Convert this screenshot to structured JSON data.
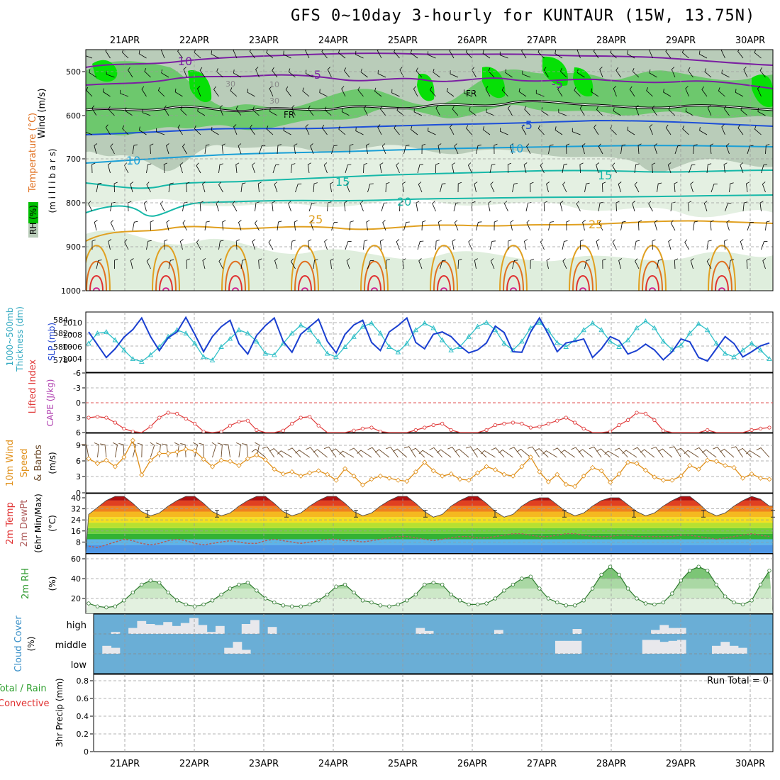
{
  "title": "GFS 0~10day 3-hourly for KUNTAUR (15W, 13.75N)",
  "colors": {
    "frame": "#000000",
    "grid": "#9a9a9a",
    "rh_light": "#dfeedd",
    "rh_mid": "#b9cdb9",
    "rh_green": "#67c767",
    "rh_bright": "#00e000",
    "purple": "#8b1fb0",
    "blue": "#1d4fd8",
    "cyan": "#1a9fd6",
    "teal": "#16b8a8",
    "orange": "#e0a020",
    "red": "#e03030",
    "magenta": "#d0208f",
    "slp": "#1a3fd0",
    "thickness": "#30c0c8",
    "lifted": "#e03a3a",
    "cape": "#b040b0",
    "wind10": "#e0901a",
    "barb": "#6b4a2a",
    "rh2m": "#2f9a2f",
    "cloud": "#6aaed6",
    "rain": "#2fa02f",
    "convective": "#e03030"
  },
  "dates": [
    "21APR",
    "22APR",
    "23APR",
    "24APR",
    "25APR",
    "26APR",
    "27APR",
    "28APR",
    "29APR",
    "30APR"
  ],
  "panels": {
    "upper": {
      "ylabel_wind": "Wind (m/s)",
      "ylabel_temp": "Temperature (°C)",
      "ylabel_rh": "RH (%)",
      "ylabel_mb": "(m i l l i b a r s)",
      "ticks": [
        "500",
        "600",
        "700",
        "800",
        "900",
        "1000"
      ],
      "contour_labels": [
        "-10",
        "-5",
        "-5",
        "FR",
        "FR",
        "-5",
        "10",
        "10",
        "15",
        "15",
        "20",
        "25",
        "25",
        "30",
        "30",
        "10",
        "30"
      ]
    },
    "slp": {
      "ylabel_thick": "1000~500mb",
      "ylabel_thick2": "Thickness (dm)",
      "ylabel_slp": "SLP (mb)",
      "left_ticks": [
        "584",
        "582",
        "580",
        "578"
      ],
      "right_ticks": [
        "1010",
        "1008",
        "1006",
        "1004"
      ]
    },
    "li": {
      "ylabel_li": "Lifted Index",
      "ylabel_cape": "CAPE (J/kg)",
      "ticks": [
        "-6",
        "-3",
        "0",
        "3",
        "6"
      ]
    },
    "wind10": {
      "ylabel1": "10m Wind",
      "ylabel2": "Speed",
      "ylabel3": "& Barbs",
      "ylabel_units": "(m/s)",
      "ticks": [
        "9",
        "6",
        "3",
        "0"
      ]
    },
    "temp2m": {
      "ylabel1": "2m Temp",
      "ylabel2": "2m DewPt",
      "ylabel3": "(6hr Min/Max)",
      "ylabel_units": "(°C)",
      "ticks": [
        "40",
        "32",
        "24",
        "16",
        "8"
      ]
    },
    "rh2m": {
      "ylabel1": "2m RH",
      "ylabel_units": "(%)",
      "ticks": [
        "60",
        "40",
        "20"
      ]
    },
    "cloud": {
      "ylabel1": "Cloud Cover",
      "ylabel_units": "(%)",
      "levels": [
        "high",
        "middle",
        "low"
      ]
    },
    "precip": {
      "ylabel1": "Total / Rain",
      "ylabel2": "Convective",
      "ylabel3": "3hr Precip (mm)",
      "ticks": [
        "0.8",
        "0.6",
        "0.4",
        "0.2",
        "0"
      ],
      "run_total": "Run Total = 0"
    }
  },
  "chart_data": [
    {
      "type": "line",
      "name": "SLP / Thickness",
      "xlabel": "",
      "series": [
        {
          "name": "SLP (mb)",
          "axis": "right",
          "values": [
            1008.4,
            1006.2,
            1004.0,
            1005.5,
            1007.5,
            1008.8,
            1010.8,
            1007.6,
            1005.2,
            1007.4,
            1008.4,
            1010.9,
            1008.0,
            1005.0,
            1007.6,
            1009.3,
            1010.4,
            1006.4,
            1004.6,
            1007.8,
            1009.5,
            1010.8,
            1006.8,
            1004.9,
            1008.0,
            1009.3,
            1010.6,
            1006.8,
            1004.8,
            1008.0,
            1009.6,
            1010.4,
            1006.6,
            1005.2,
            1008.4,
            1009.5,
            1010.8,
            1006.6,
            1005.5,
            1008.0,
            1008.4,
            1007.6,
            1006.0,
            1004.8,
            1005.3,
            1006.5,
            1009.4,
            1008.3,
            1005.0,
            1004.9,
            1008.4,
            1010.8,
            1008.0,
            1005.0,
            1006.5,
            1006.8,
            1007.2,
            1004.0,
            1005.5,
            1007.6,
            1006.9,
            1004.6,
            1005.2,
            1006.3,
            1005.3,
            1003.6,
            1005.0,
            1007.2,
            1006.7,
            1004.0,
            1003.4,
            1005.5,
            1007.6,
            1006.4,
            1004.1,
            1005.0,
            1006.0,
            1006.5
          ]
        },
        {
          "name": "Thickness (dm)",
          "axis": "left",
          "values": [
            580.5,
            582.0,
            582.2,
            581.0,
            579.5,
            578.2,
            577.8,
            578.8,
            580.0,
            581.5,
            582.5,
            582.0,
            580.5,
            578.5,
            578.0,
            580.0,
            581.2,
            582.5,
            582.0,
            580.8,
            579.0,
            578.8,
            580.5,
            582.0,
            583.2,
            582.5,
            580.8,
            579.0,
            578.5,
            580.0,
            581.5,
            583.0,
            583.5,
            582.0,
            580.0,
            579.2,
            580.5,
            582.5,
            583.5,
            582.8,
            581.0,
            579.5,
            580.0,
            581.5,
            583.0,
            583.6,
            582.5,
            580.5,
            579.5,
            580.8,
            582.8,
            583.6,
            582.4,
            580.6,
            580.0,
            581.0,
            582.5,
            583.5,
            582.5,
            580.8,
            580.0,
            581.0,
            582.8,
            583.8,
            582.8,
            580.8,
            579.6,
            580.2,
            582.0,
            583.4,
            582.5,
            580.5,
            579.0,
            578.5,
            579.5,
            580.5,
            579.5,
            578.2
          ]
        }
      ]
    },
    {
      "type": "line",
      "name": "Lifted Index",
      "ylim": [
        6,
        -6
      ],
      "series": [
        {
          "name": "Lifted Index",
          "values": [
            3.0,
            2.8,
            3.0,
            4.0,
            5.2,
            5.8,
            6.0,
            4.8,
            3.0,
            2.0,
            2.2,
            3.2,
            4.2,
            5.8,
            6.0,
            5.8,
            4.6,
            3.8,
            3.6,
            5.5,
            6.0,
            6.0,
            5.6,
            4.2,
            3.0,
            2.8,
            4.6,
            6.0,
            6.0,
            6.0,
            5.6,
            5.2,
            5.0,
            5.8,
            6.0,
            6.0,
            6.0,
            5.5,
            5.0,
            4.5,
            4.2,
            5.5,
            6.0,
            6.0,
            6.0,
            5.5,
            4.5,
            4.2,
            4.0,
            4.2,
            5.0,
            4.8,
            4.2,
            3.6,
            3.0,
            4.0,
            5.2,
            6.0,
            6.0,
            5.8,
            4.5,
            3.5,
            2.0,
            2.2,
            3.5,
            5.6,
            6.0,
            6.0,
            6.0,
            6.0,
            5.5,
            6.0,
            6.0,
            6.0,
            6.0,
            5.5,
            5.2,
            5.0
          ]
        }
      ]
    },
    {
      "type": "line",
      "name": "10m Wind Speed",
      "ylim": [
        0,
        11
      ],
      "series": [
        {
          "name": "Speed (m/s)",
          "values": [
            6.5,
            5.6,
            6.2,
            5.0,
            6.8,
            10.0,
            3.4,
            6.2,
            7.5,
            7.5,
            7.8,
            8.3,
            8.0,
            6.4,
            5.0,
            6.2,
            6.0,
            5.2,
            6.5,
            7.2,
            6.3,
            4.5,
            3.6,
            4.0,
            3.2,
            3.8,
            4.2,
            3.5,
            2.4,
            4.6,
            3.2,
            1.5,
            2.6,
            3.2,
            2.8,
            2.4,
            2.2,
            4.0,
            5.8,
            4.2,
            3.2,
            3.6,
            2.6,
            2.4,
            3.8,
            5.0,
            4.4,
            3.5,
            3.2,
            5.0,
            6.8,
            4.0,
            2.1,
            3.5,
            1.6,
            1.2,
            3.2,
            4.8,
            4.2,
            2.0,
            3.6,
            5.8,
            5.6,
            4.3,
            3.0,
            2.4,
            2.4,
            3.2,
            5.2,
            4.5,
            6.2,
            6.0,
            5.2,
            4.8,
            2.8,
            3.6,
            2.8,
            2.6
          ]
        }
      ]
    },
    {
      "type": "area",
      "name": "2m Temp / DewPt",
      "ylim": [
        0,
        42
      ],
      "series": [
        {
          "name": "2m Temp",
          "values": [
            28,
            33,
            38,
            41,
            41,
            36,
            30,
            27,
            29,
            34,
            38,
            41,
            41,
            36,
            30,
            27,
            29,
            34,
            38,
            41,
            41,
            36,
            30,
            27,
            29,
            34,
            38,
            41,
            41,
            36,
            30,
            27,
            29,
            34,
            38,
            41,
            41,
            36,
            30,
            26,
            28,
            34,
            38,
            41,
            41,
            36,
            30,
            26,
            28,
            34,
            38,
            40,
            40,
            35,
            30,
            27,
            29,
            34,
            38,
            40,
            40,
            35,
            30,
            27,
            29,
            34,
            38,
            41,
            41,
            36,
            30,
            27,
            29,
            34,
            38,
            41,
            39,
            34
          ]
        },
        {
          "name": "2m DewPt",
          "values": [
            5,
            4,
            6,
            8,
            10,
            9,
            7,
            6,
            7,
            9,
            10,
            9,
            7,
            6,
            7,
            8,
            9,
            8,
            7,
            7,
            9,
            10,
            9,
            8,
            7,
            8,
            9,
            10,
            10,
            9,
            9,
            8,
            9,
            10,
            11,
            12,
            12,
            11,
            10,
            9,
            10,
            11,
            12,
            12,
            11,
            11,
            12,
            13,
            14,
            14,
            13,
            12,
            12,
            13,
            14,
            14,
            13,
            12,
            12,
            12,
            13,
            13,
            12,
            12,
            12,
            12,
            12,
            13,
            13,
            12,
            11,
            10,
            11,
            12,
            13,
            14,
            13,
            12
          ]
        }
      ]
    },
    {
      "type": "area",
      "name": "2m RH",
      "ylim": [
        5,
        62
      ],
      "series": [
        {
          "name": "2m RH (%)",
          "values": [
            15,
            12,
            11,
            12,
            18,
            26,
            34,
            38,
            36,
            26,
            18,
            14,
            12,
            14,
            18,
            24,
            30,
            34,
            36,
            28,
            20,
            16,
            13,
            12,
            12,
            14,
            18,
            24,
            32,
            34,
            26,
            18,
            16,
            13,
            12,
            14,
            18,
            24,
            34,
            36,
            34,
            24,
            18,
            14,
            14,
            15,
            20,
            28,
            34,
            40,
            42,
            30,
            20,
            16,
            13,
            13,
            18,
            30,
            44,
            52,
            44,
            30,
            20,
            15,
            14,
            16,
            25,
            38,
            48,
            52,
            48,
            34,
            22,
            16,
            14,
            18,
            34,
            48
          ]
        }
      ]
    },
    {
      "type": "bar",
      "name": "Cloud Cover",
      "series": [
        {
          "name": "high",
          "values": [
            0,
            0,
            10,
            0,
            30,
            65,
            50,
            45,
            60,
            40,
            55,
            80,
            45,
            10,
            40,
            0,
            0,
            50,
            70,
            0,
            35,
            0,
            0,
            0,
            0,
            0,
            0,
            0,
            0,
            0,
            0,
            0,
            0,
            0,
            0,
            0,
            0,
            30,
            15,
            0,
            0,
            0,
            0,
            0,
            0,
            0,
            20,
            0,
            0,
            0,
            0,
            0,
            0,
            0,
            0,
            25,
            0,
            0,
            0,
            0,
            0,
            0,
            0,
            0,
            20,
            45,
            30,
            30,
            0,
            0,
            0,
            0,
            0,
            0,
            0,
            0,
            0,
            0
          ]
        },
        {
          "name": "middle",
          "values": [
            0,
            40,
            30,
            0,
            0,
            0,
            0,
            0,
            0,
            0,
            0,
            0,
            0,
            0,
            0,
            30,
            60,
            20,
            0,
            0,
            0,
            0,
            0,
            0,
            0,
            0,
            0,
            0,
            0,
            0,
            0,
            0,
            0,
            0,
            0,
            0,
            0,
            0,
            0,
            0,
            0,
            0,
            0,
            0,
            0,
            0,
            0,
            0,
            0,
            0,
            0,
            0,
            0,
            65,
            65,
            65,
            0,
            0,
            0,
            0,
            0,
            0,
            0,
            70,
            70,
            60,
            65,
            70,
            0,
            0,
            0,
            40,
            60,
            40,
            30,
            0,
            0,
            0
          ]
        },
        {
          "name": "low",
          "values": [
            0,
            0,
            0,
            0,
            0,
            0,
            0,
            0,
            0,
            0,
            0,
            0,
            0,
            0,
            0,
            0,
            0,
            0,
            0,
            0,
            0,
            0,
            0,
            0,
            0,
            0,
            0,
            0,
            0,
            0,
            0,
            0,
            0,
            0,
            0,
            0,
            0,
            0,
            0,
            0,
            0,
            0,
            0,
            0,
            0,
            0,
            0,
            0,
            0,
            0,
            0,
            0,
            0,
            0,
            0,
            0,
            0,
            0,
            0,
            0,
            0,
            0,
            0,
            0,
            0,
            0,
            0,
            0,
            0,
            0,
            0,
            0,
            0,
            0,
            0,
            0,
            0,
            0
          ]
        }
      ]
    },
    {
      "type": "bar",
      "name": "3hr Precip",
      "ylim": [
        0,
        0.9
      ],
      "series": [
        {
          "name": "Total / Rain",
          "values": [
            0
          ]
        },
        {
          "name": "Convective",
          "values": [
            0
          ]
        }
      ]
    }
  ]
}
